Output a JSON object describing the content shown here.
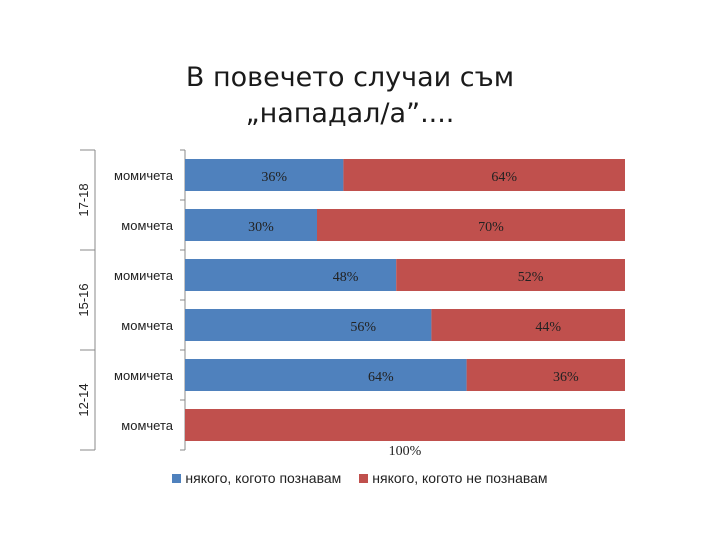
{
  "title_line1": "В повечето случаи съм",
  "title_line2": "„нападал/а”....",
  "legend_labels": [
    "някого, когото познавам",
    "някого, когото не познавам"
  ],
  "chart_data": {
    "type": "bar",
    "orientation": "horizontal",
    "stacked": "percent",
    "title": "В повечето случаи съм „нападал/а”....",
    "categories": [
      "момичета",
      "момчета",
      "момичета",
      "момчета",
      "момичета",
      "момчета"
    ],
    "groups": [
      {
        "label": "17-18",
        "categories": [
          0,
          1
        ]
      },
      {
        "label": "15-16",
        "categories": [
          2,
          3
        ]
      },
      {
        "label": "12-14",
        "categories": [
          4,
          5
        ]
      }
    ],
    "series": [
      {
        "name": "някого, когото познавам",
        "color": "#4f81bd",
        "values": [
          36,
          30,
          48,
          56,
          64,
          0
        ],
        "labels": [
          "36%",
          "30%",
          "48%",
          "56%",
          "64%",
          ""
        ]
      },
      {
        "name": "някого, когото не познавам",
        "color": "#c0504d",
        "values": [
          64,
          70,
          52,
          44,
          36,
          100
        ],
        "labels": [
          "64%",
          "70%",
          "52%",
          "44%",
          "36%",
          "100%"
        ]
      }
    ],
    "xlim": [
      0,
      100
    ],
    "grid": false,
    "legend_position": "bottom"
  }
}
